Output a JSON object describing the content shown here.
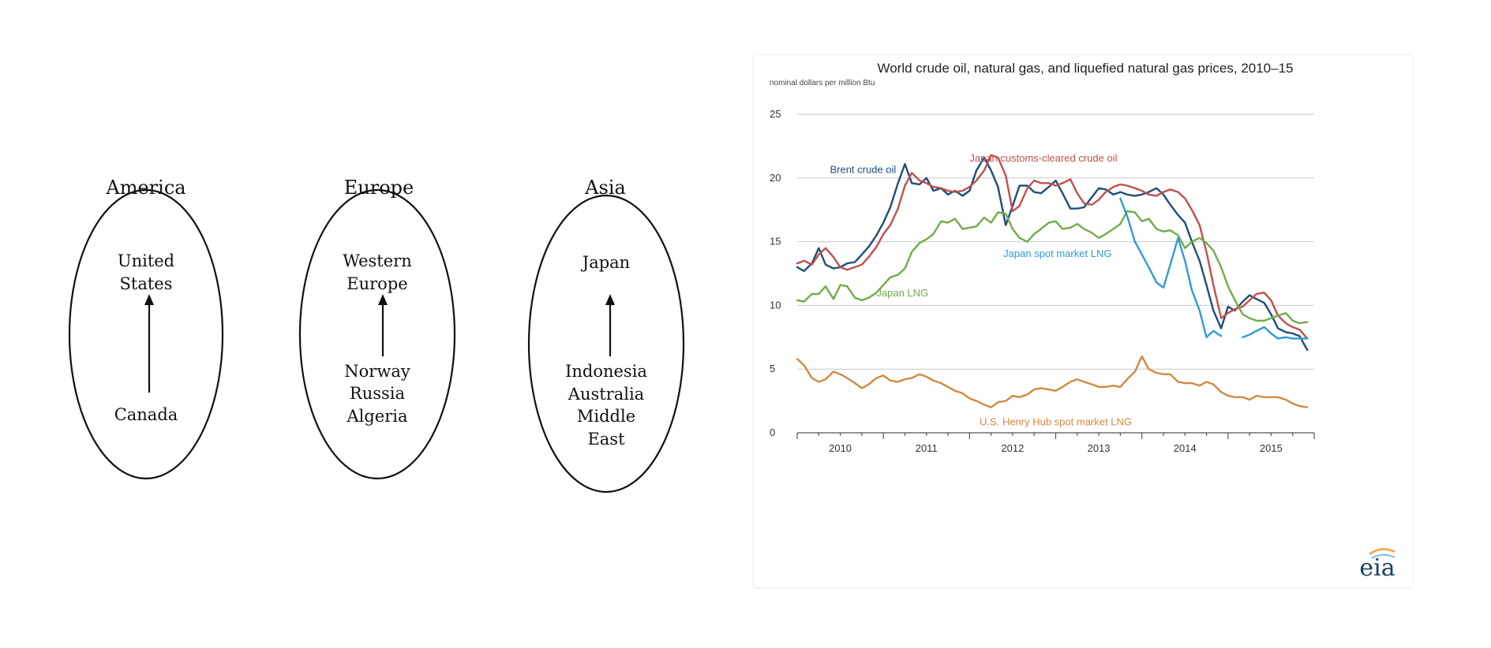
{
  "diagram": {
    "regions": [
      {
        "title": "America",
        "importers": [
          "United",
          "States"
        ],
        "exporters": [
          "Canada"
        ]
      },
      {
        "title": "Europe",
        "importers": [
          "Western",
          "Europe"
        ],
        "exporters": [
          "Norway",
          "Russia",
          "Algeria"
        ]
      },
      {
        "title": "Asia",
        "importers": [
          "Japan"
        ],
        "exporters": [
          "Indonesia",
          "Australia",
          "Middle",
          "East"
        ]
      }
    ]
  },
  "logo": {
    "text": "eia"
  },
  "chart_data": {
    "type": "line",
    "title": "World crude oil, natural gas, and liquefied natural gas prices, 2010–15",
    "subtitle": "nominal dollars per million Btu",
    "xlabel": "",
    "ylabel": "",
    "ylim": [
      0,
      25
    ],
    "xlim": [
      2010.0,
      2016.0
    ],
    "y_ticks": [
      0,
      5,
      10,
      15,
      20,
      25
    ],
    "x_tick_labels": [
      "2010",
      "2011",
      "2012",
      "2013",
      "2014",
      "2015"
    ],
    "grid": true,
    "legend": "labels placed next to lines",
    "series": [
      {
        "name": "Brent crude oil",
        "color": "#1f4e79",
        "x": [
          2010.0,
          2010.08,
          2010.17,
          2010.25,
          2010.33,
          2010.42,
          2010.5,
          2010.58,
          2010.67,
          2010.75,
          2010.83,
          2010.92,
          2011.0,
          2011.08,
          2011.17,
          2011.25,
          2011.33,
          2011.42,
          2011.5,
          2011.58,
          2011.67,
          2011.75,
          2011.83,
          2011.92,
          2012.0,
          2012.08,
          2012.17,
          2012.25,
          2012.33,
          2012.42,
          2012.5,
          2012.58,
          2012.67,
          2012.75,
          2012.83,
          2012.92,
          2013.0,
          2013.08,
          2013.17,
          2013.25,
          2013.33,
          2013.42,
          2013.5,
          2013.58,
          2013.67,
          2013.75,
          2013.83,
          2013.92,
          2014.0,
          2014.08,
          2014.17,
          2014.25,
          2014.33,
          2014.42,
          2014.5,
          2014.58,
          2014.67,
          2014.75,
          2014.83,
          2014.92,
          2015.0,
          2015.08,
          2015.17,
          2015.25,
          2015.33,
          2015.42,
          2015.5,
          2015.58,
          2015.67,
          2015.75,
          2015.83,
          2015.92
        ],
        "values": [
          13.0,
          12.7,
          13.3,
          14.5,
          13.2,
          12.9,
          13.0,
          13.3,
          13.4,
          14.0,
          14.6,
          15.5,
          16.5,
          17.7,
          19.6,
          21.1,
          19.6,
          19.5,
          20.0,
          19.0,
          19.2,
          18.7,
          19.0,
          18.6,
          19.0,
          20.6,
          21.6,
          20.6,
          19.3,
          16.3,
          17.8,
          19.4,
          19.4,
          18.9,
          18.8,
          19.3,
          19.8,
          18.8,
          17.6,
          17.6,
          17.7,
          18.5,
          19.2,
          19.1,
          18.7,
          18.9,
          18.7,
          18.6,
          18.7,
          18.9,
          19.2,
          18.7,
          17.9,
          17.1,
          16.5,
          15.0,
          13.5,
          11.6,
          9.6,
          8.2,
          9.9,
          9.6,
          10.3,
          10.8,
          10.5,
          10.2,
          9.3,
          8.2,
          7.9,
          7.8,
          7.6,
          6.5
        ]
      },
      {
        "name": "Japan customs-cleared crude oil",
        "color": "#c0504d",
        "x": [
          2010.0,
          2010.08,
          2010.17,
          2010.25,
          2010.33,
          2010.42,
          2010.5,
          2010.58,
          2010.67,
          2010.75,
          2010.83,
          2010.92,
          2011.0,
          2011.08,
          2011.17,
          2011.25,
          2011.33,
          2011.42,
          2011.5,
          2011.58,
          2011.67,
          2011.75,
          2011.83,
          2011.92,
          2012.0,
          2012.08,
          2012.17,
          2012.25,
          2012.33,
          2012.42,
          2012.5,
          2012.58,
          2012.67,
          2012.75,
          2012.83,
          2012.92,
          2013.0,
          2013.08,
          2013.17,
          2013.25,
          2013.33,
          2013.42,
          2013.5,
          2013.58,
          2013.67,
          2013.75,
          2013.83,
          2013.92,
          2014.0,
          2014.08,
          2014.17,
          2014.25,
          2014.33,
          2014.42,
          2014.5,
          2014.58,
          2014.67,
          2014.75,
          2014.83,
          2014.92,
          2015.0,
          2015.08,
          2015.17,
          2015.25,
          2015.33,
          2015.42,
          2015.5,
          2015.58,
          2015.67,
          2015.75,
          2015.83,
          2015.92
        ],
        "values": [
          13.3,
          13.5,
          13.2,
          14.0,
          14.5,
          13.8,
          13.0,
          12.8,
          13.0,
          13.2,
          13.8,
          14.6,
          15.6,
          16.3,
          17.6,
          19.4,
          20.4,
          19.8,
          19.6,
          19.3,
          19.2,
          19.0,
          18.9,
          19.0,
          19.3,
          19.8,
          20.6,
          21.8,
          21.6,
          20.2,
          17.4,
          17.8,
          19.2,
          19.8,
          19.6,
          19.6,
          19.4,
          19.6,
          19.9,
          18.8,
          18.0,
          17.9,
          18.3,
          18.9,
          19.3,
          19.5,
          19.4,
          19.2,
          19.0,
          18.7,
          18.6,
          18.9,
          19.1,
          18.9,
          18.4,
          17.5,
          16.3,
          14.2,
          11.6,
          9.0,
          9.4,
          9.7,
          9.9,
          10.4,
          10.9,
          11.0,
          10.4,
          9.2,
          8.6,
          8.3,
          8.1,
          7.4
        ]
      },
      {
        "name": "Japan LNG",
        "color": "#70ad47",
        "x": [
          2010.0,
          2010.08,
          2010.17,
          2010.25,
          2010.33,
          2010.42,
          2010.5,
          2010.58,
          2010.67,
          2010.75,
          2010.83,
          2010.92,
          2011.0,
          2011.08,
          2011.17,
          2011.25,
          2011.33,
          2011.42,
          2011.5,
          2011.58,
          2011.67,
          2011.75,
          2011.83,
          2011.92,
          2012.0,
          2012.08,
          2012.17,
          2012.25,
          2012.33,
          2012.42,
          2012.5,
          2012.58,
          2012.67,
          2012.75,
          2012.83,
          2012.92,
          2013.0,
          2013.08,
          2013.17,
          2013.25,
          2013.33,
          2013.42,
          2013.5,
          2013.58,
          2013.67,
          2013.75,
          2013.83,
          2013.92,
          2014.0,
          2014.08,
          2014.17,
          2014.25,
          2014.33,
          2014.42,
          2014.5,
          2014.58,
          2014.67,
          2014.75,
          2014.83,
          2014.92,
          2015.0,
          2015.08,
          2015.17,
          2015.25,
          2015.33,
          2015.42,
          2015.5,
          2015.58,
          2015.67,
          2015.75,
          2015.83,
          2015.92
        ],
        "values": [
          10.4,
          10.3,
          10.9,
          10.9,
          11.5,
          10.5,
          11.6,
          11.5,
          10.6,
          10.4,
          10.6,
          11.0,
          11.6,
          12.2,
          12.4,
          12.9,
          14.2,
          14.9,
          15.2,
          15.6,
          16.6,
          16.5,
          16.8,
          16.0,
          16.1,
          16.2,
          16.9,
          16.5,
          17.3,
          17.2,
          16.0,
          15.3,
          15.0,
          15.6,
          16.0,
          16.5,
          16.6,
          16.0,
          16.1,
          16.4,
          16.0,
          15.7,
          15.3,
          15.6,
          16.0,
          16.4,
          17.4,
          17.3,
          16.6,
          16.8,
          16.0,
          15.8,
          15.9,
          15.5,
          14.5,
          15.0,
          15.3,
          14.9,
          14.3,
          13.0,
          11.5,
          10.4,
          9.3,
          9.0,
          8.8,
          8.8,
          9.0,
          9.2,
          9.4,
          8.8,
          8.6,
          8.7
        ]
      },
      {
        "name": "Japan spot market LNG",
        "color": "#2e9bd6",
        "x": [
          2013.75,
          2013.83,
          2013.92,
          2014.0,
          2014.08,
          2014.17,
          2014.25,
          2014.33,
          2014.42,
          2014.5,
          2014.58,
          2014.67,
          2014.75,
          2014.83,
          2014.92,
          2015.0,
          null,
          2015.17,
          2015.25,
          2015.33,
          2015.42,
          2015.5,
          2015.58,
          2015.67,
          2015.75,
          2015.83,
          2015.92
        ],
        "values": [
          18.4,
          17.0,
          15.0,
          14.0,
          13.0,
          11.8,
          11.4,
          13.2,
          15.3,
          13.5,
          11.2,
          9.6,
          7.5,
          8.0,
          7.6,
          null,
          null,
          7.5,
          7.7,
          8.0,
          8.3,
          7.8,
          7.4,
          7.5,
          7.4,
          7.4,
          7.4
        ]
      },
      {
        "name": "U.S. Henry Hub spot market LNG",
        "color": "#d18a3f",
        "x": [
          2010.0,
          2010.08,
          2010.17,
          2010.25,
          2010.33,
          2010.42,
          2010.5,
          2010.58,
          2010.67,
          2010.75,
          2010.83,
          2010.92,
          2011.0,
          2011.08,
          2011.17,
          2011.25,
          2011.33,
          2011.42,
          2011.5,
          2011.58,
          2011.67,
          2011.75,
          2011.83,
          2011.92,
          2012.0,
          2012.08,
          2012.17,
          2012.25,
          2012.33,
          2012.42,
          2012.5,
          2012.58,
          2012.67,
          2012.75,
          2012.83,
          2012.92,
          2013.0,
          2013.08,
          2013.17,
          2013.25,
          2013.33,
          2013.42,
          2013.5,
          2013.58,
          2013.67,
          2013.75,
          2013.83,
          2013.92,
          2014.0,
          2014.08,
          2014.17,
          2014.25,
          2014.33,
          2014.42,
          2014.5,
          2014.58,
          2014.67,
          2014.75,
          2014.83,
          2014.92,
          2015.0,
          2015.08,
          2015.17,
          2015.25,
          2015.33,
          2015.42,
          2015.5,
          2015.58,
          2015.67,
          2015.75,
          2015.83,
          2015.92
        ],
        "values": [
          5.8,
          5.3,
          4.3,
          4.0,
          4.2,
          4.8,
          4.6,
          4.3,
          3.9,
          3.5,
          3.8,
          4.3,
          4.5,
          4.1,
          4.0,
          4.2,
          4.3,
          4.6,
          4.4,
          4.1,
          3.9,
          3.6,
          3.3,
          3.1,
          2.7,
          2.5,
          2.2,
          2.0,
          2.4,
          2.5,
          2.9,
          2.8,
          3.0,
          3.4,
          3.5,
          3.4,
          3.3,
          3.6,
          4.0,
          4.2,
          4.0,
          3.8,
          3.6,
          3.6,
          3.7,
          3.6,
          4.2,
          4.8,
          6.0,
          5.0,
          4.7,
          4.6,
          4.6,
          4.0,
          3.9,
          3.9,
          3.7,
          4.0,
          3.8,
          3.2,
          2.9,
          2.8,
          2.8,
          2.6,
          2.9,
          2.8,
          2.8,
          2.8,
          2.6,
          2.3,
          2.1,
          2.0
        ]
      }
    ]
  }
}
